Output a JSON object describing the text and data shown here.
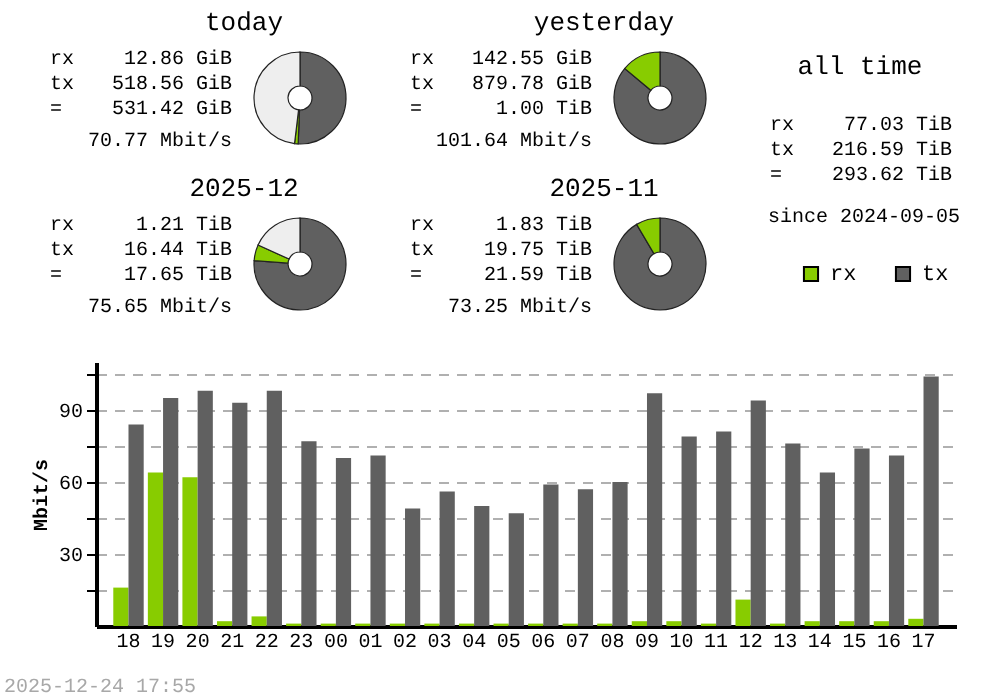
{
  "chart_data": [
    {
      "type": "donut",
      "title": "today",
      "categories": [
        null,
        null,
        null
      ],
      "values": [
        50.64,
        1.26,
        48.1
      ],
      "colors": [
        "#606060",
        "#88cc00",
        "#eeeeee"
      ],
      "annotations": [
        "rx",
        "12.86 GiB",
        "tx",
        "518.56 GiB",
        "=",
        "531.42 GiB",
        "70.77 Mbit/s"
      ]
    },
    {
      "type": "donut",
      "title": "yesterday",
      "categories": [
        null,
        null
      ],
      "values": [
        86.06,
        13.94
      ],
      "colors": [
        "#606060",
        "#88cc00"
      ],
      "annotations": [
        "rx",
        "142.55 GiB",
        "tx",
        "879.78 GiB",
        "=",
        "1.00 TiB",
        "101.64 Mbit/s"
      ]
    },
    {
      "type": "other",
      "title": "all time",
      "annotations": [
        "rx",
        "77.03 TiB",
        "tx",
        "216.59 TiB",
        "=",
        "293.62 TiB",
        "since 2024-09-05"
      ]
    },
    {
      "type": "donut",
      "title": "2025-12",
      "categories": [
        null,
        null,
        null
      ],
      "values": [
        76.15,
        5.6,
        18.25
      ],
      "colors": [
        "#606060",
        "#88cc00",
        "#eeeeee"
      ],
      "annotations": [
        "rx",
        "1.21 TiB",
        "tx",
        "16.44 TiB",
        "=",
        "17.65 TiB",
        "75.65 Mbit/s"
      ]
    },
    {
      "type": "donut",
      "title": "2025-11",
      "categories": [
        null,
        null
      ],
      "values": [
        91.52,
        8.48
      ],
      "colors": [
        "#606060",
        "#88cc00"
      ],
      "annotations": [
        "rx",
        "1.83 TiB",
        "tx",
        "19.75 TiB",
        "=",
        "21.59 TiB",
        "73.25 Mbit/s"
      ]
    },
    {
      "type": "bar",
      "ylabel": "Mbit/s",
      "categories": [
        "18",
        "19",
        "20",
        "21",
        "22",
        "23",
        "00",
        "01",
        "02",
        "03",
        "04",
        "05",
        "06",
        "07",
        "08",
        "09",
        "10",
        "11",
        "12",
        "13",
        "14",
        "15",
        "16",
        "17"
      ],
      "series": [
        {
          "name": "rx",
          "color": "#88cc00",
          "values": [
            16,
            64,
            62,
            2,
            4,
            1,
            1,
            1,
            1,
            1,
            1,
            1,
            1,
            1,
            1,
            2,
            2,
            1,
            11,
            1,
            2,
            2,
            2,
            3
          ]
        },
        {
          "name": "tx",
          "color": "#606060",
          "values": [
            84,
            95,
            98,
            93,
            98,
            77,
            70,
            71,
            49,
            56,
            50,
            47,
            59,
            57,
            60,
            97,
            79,
            81,
            94,
            76,
            64,
            74,
            71,
            104
          ]
        }
      ],
      "ylim": [
        0,
        110
      ],
      "yticks": [
        {
          "value": 15,
          "label": null
        },
        30,
        {
          "value": 45,
          "label": null
        },
        60,
        {
          "value": 75,
          "label": null
        },
        90,
        {
          "value": 105,
          "label": null
        }
      ],
      "grid": "y",
      "legend": "top right",
      "annotations": [
        "2025-12-24 17:55"
      ]
    }
  ]
}
